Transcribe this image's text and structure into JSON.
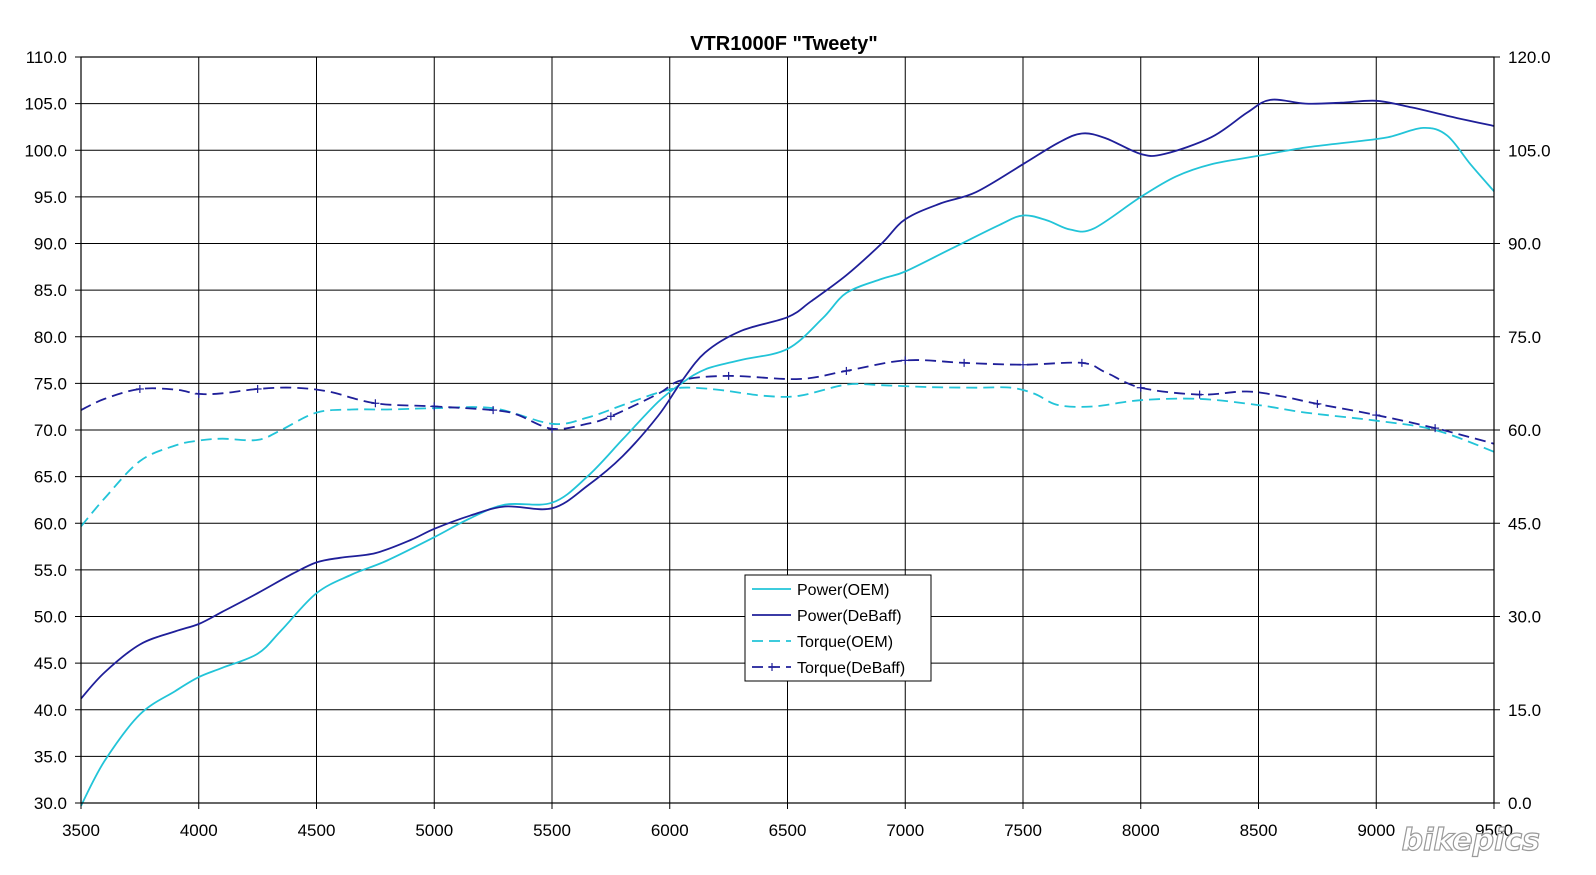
{
  "watermark": "bikepics",
  "chart_data": {
    "type": "line",
    "title": "VTR1000F \"Tweety\"",
    "xlabel": "",
    "ylabel": "",
    "y2label": "",
    "xlim": [
      3500,
      9500
    ],
    "ylim": [
      30,
      110
    ],
    "y2lim": [
      0,
      120
    ],
    "x_ticks": [
      "3500",
      "4000",
      "4500",
      "5000",
      "5500",
      "6000",
      "6500",
      "7000",
      "7500",
      "8000",
      "8500",
      "9000",
      "9500"
    ],
    "y_ticks": [
      "30.0",
      "35.0",
      "40.0",
      "45.0",
      "50.0",
      "55.0",
      "60.0",
      "65.0",
      "70.0",
      "75.0",
      "80.0",
      "85.0",
      "90.0",
      "95.0",
      "100.0",
      "105.0",
      "110.0"
    ],
    "y2_ticks": [
      "0.0",
      "15.0",
      "30.0",
      "45.0",
      "60.0",
      "75.0",
      "90.0",
      "105.0",
      "120.0"
    ],
    "grid": true,
    "legend_position": "center-bottom",
    "series": [
      {
        "name": "Power(OEM)",
        "axis": "left",
        "color": "#22C4D8",
        "dash": "solid",
        "marker": "none",
        "points": [
          [
            3500,
            29.7
          ],
          [
            3600,
            34.5
          ],
          [
            3750,
            39.5
          ],
          [
            3900,
            42
          ],
          [
            4000,
            43.5
          ],
          [
            4100,
            44.5
          ],
          [
            4250,
            46
          ],
          [
            4350,
            48.5
          ],
          [
            4500,
            52.5
          ],
          [
            4650,
            54.5
          ],
          [
            4800,
            56
          ],
          [
            5000,
            58.5
          ],
          [
            5150,
            60.5
          ],
          [
            5300,
            62
          ],
          [
            5500,
            62.2
          ],
          [
            5650,
            65
          ],
          [
            5800,
            69
          ],
          [
            5950,
            73
          ],
          [
            6050,
            75
          ],
          [
            6150,
            76.5
          ],
          [
            6300,
            77.5
          ],
          [
            6500,
            78.7
          ],
          [
            6650,
            82
          ],
          [
            6750,
            84.7
          ],
          [
            6900,
            86.2
          ],
          [
            7000,
            87
          ],
          [
            7200,
            89.5
          ],
          [
            7400,
            92
          ],
          [
            7500,
            93
          ],
          [
            7600,
            92.5
          ],
          [
            7700,
            91.5
          ],
          [
            7800,
            91.6
          ],
          [
            8000,
            95
          ],
          [
            8150,
            97.2
          ],
          [
            8300,
            98.5
          ],
          [
            8500,
            99.4
          ],
          [
            8700,
            100.3
          ],
          [
            8900,
            100.9
          ],
          [
            9050,
            101.4
          ],
          [
            9200,
            102.4
          ],
          [
            9300,
            101.6
          ],
          [
            9400,
            98.5
          ],
          [
            9500,
            95.6
          ]
        ]
      },
      {
        "name": "Power(DeBaff)",
        "axis": "left",
        "color": "#1F1F99",
        "dash": "solid",
        "marker": "none",
        "points": [
          [
            3500,
            41.2
          ],
          [
            3600,
            44
          ],
          [
            3750,
            47
          ],
          [
            3900,
            48.4
          ],
          [
            4000,
            49.2
          ],
          [
            4100,
            50.5
          ],
          [
            4250,
            52.5
          ],
          [
            4400,
            54.6
          ],
          [
            4500,
            55.8
          ],
          [
            4600,
            56.3
          ],
          [
            4750,
            56.8
          ],
          [
            4900,
            58.2
          ],
          [
            5000,
            59.4
          ],
          [
            5150,
            60.8
          ],
          [
            5300,
            61.8
          ],
          [
            5500,
            61.6
          ],
          [
            5650,
            64
          ],
          [
            5800,
            67.2
          ],
          [
            5950,
            71.5
          ],
          [
            6050,
            75.2
          ],
          [
            6150,
            78.3
          ],
          [
            6300,
            80.6
          ],
          [
            6500,
            82.1
          ],
          [
            6600,
            83.8
          ],
          [
            6750,
            86.6
          ],
          [
            6900,
            90
          ],
          [
            7000,
            92.6
          ],
          [
            7150,
            94.3
          ],
          [
            7300,
            95.5
          ],
          [
            7500,
            98.5
          ],
          [
            7650,
            100.8
          ],
          [
            7750,
            101.8
          ],
          [
            7850,
            101.3
          ],
          [
            8000,
            99.6
          ],
          [
            8100,
            99.6
          ],
          [
            8300,
            101.4
          ],
          [
            8450,
            104
          ],
          [
            8550,
            105.4
          ],
          [
            8700,
            105
          ],
          [
            8850,
            105.1
          ],
          [
            9000,
            105.3
          ],
          [
            9150,
            104.6
          ],
          [
            9300,
            103.7
          ],
          [
            9500,
            102.6
          ]
        ]
      },
      {
        "name": "Torque(OEM)",
        "axis": "right",
        "color": "#22C4D8",
        "dash": "dashed",
        "marker": "none",
        "points": [
          [
            3500,
            44.5
          ],
          [
            3600,
            49
          ],
          [
            3750,
            55
          ],
          [
            3900,
            57.5
          ],
          [
            4000,
            58.3
          ],
          [
            4100,
            58.6
          ],
          [
            4250,
            58.4
          ],
          [
            4350,
            60
          ],
          [
            4500,
            62.8
          ],
          [
            4650,
            63.3
          ],
          [
            4800,
            63.3
          ],
          [
            5000,
            63.5
          ],
          [
            5250,
            63.5
          ],
          [
            5500,
            61
          ],
          [
            5650,
            62
          ],
          [
            5800,
            64
          ],
          [
            5950,
            66
          ],
          [
            6050,
            66.8
          ],
          [
            6200,
            66.5
          ],
          [
            6400,
            65.5
          ],
          [
            6550,
            65.5
          ],
          [
            6750,
            67.3
          ],
          [
            6900,
            67.2
          ],
          [
            7100,
            66.9
          ],
          [
            7300,
            66.8
          ],
          [
            7450,
            66.8
          ],
          [
            7550,
            65.8
          ],
          [
            7650,
            64
          ],
          [
            7800,
            63.8
          ],
          [
            8000,
            64.8
          ],
          [
            8250,
            65
          ],
          [
            8500,
            64
          ],
          [
            8700,
            62.8
          ],
          [
            9000,
            61.5
          ],
          [
            9250,
            60
          ],
          [
            9500,
            56.5
          ]
        ]
      },
      {
        "name": "Torque(DeBaff)",
        "axis": "right",
        "color": "#1F1F99",
        "dash": "dashed",
        "marker": "plus",
        "points": [
          [
            3500,
            63.2
          ],
          [
            3600,
            65
          ],
          [
            3750,
            66.6
          ],
          [
            3900,
            66.5
          ],
          [
            4000,
            65.8
          ],
          [
            4100,
            65.9
          ],
          [
            4250,
            66.6
          ],
          [
            4400,
            66.8
          ],
          [
            4550,
            66.2
          ],
          [
            4750,
            64.3
          ],
          [
            5000,
            63.8
          ],
          [
            5250,
            63.2
          ],
          [
            5350,
            62.5
          ],
          [
            5500,
            60.2
          ],
          [
            5650,
            61
          ],
          [
            5750,
            62.2
          ],
          [
            5950,
            65.8
          ],
          [
            6050,
            68
          ],
          [
            6250,
            68.7
          ],
          [
            6550,
            68.2
          ],
          [
            6750,
            69.5
          ],
          [
            7000,
            71.2
          ],
          [
            7250,
            70.8
          ],
          [
            7500,
            70.5
          ],
          [
            7750,
            70.8
          ],
          [
            7850,
            69.3
          ],
          [
            8000,
            66.8
          ],
          [
            8250,
            65.7
          ],
          [
            8450,
            66.2
          ],
          [
            8600,
            65.4
          ],
          [
            8750,
            64.2
          ],
          [
            9000,
            62.4
          ],
          [
            9250,
            60.3
          ],
          [
            9500,
            57.8
          ]
        ]
      }
    ]
  }
}
